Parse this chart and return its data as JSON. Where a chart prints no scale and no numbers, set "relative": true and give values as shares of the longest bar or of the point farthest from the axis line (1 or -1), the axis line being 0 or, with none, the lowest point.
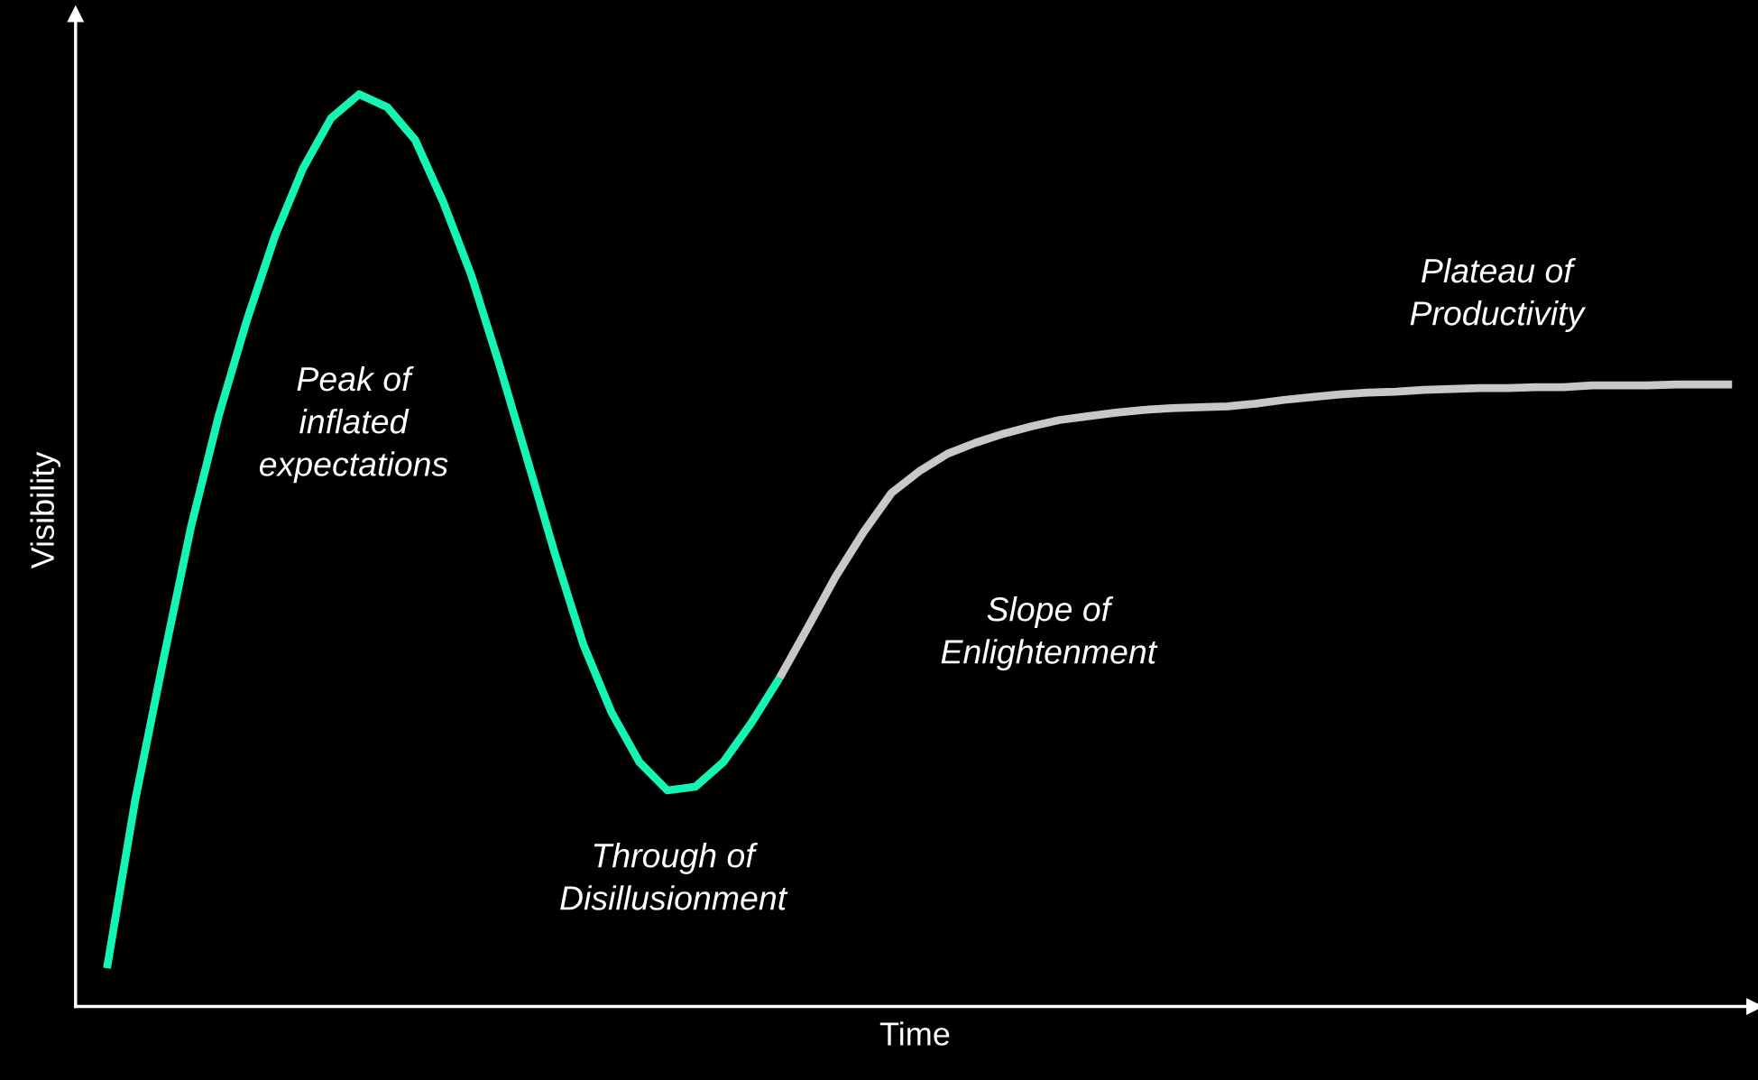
{
  "chart_data": {
    "type": "line",
    "relative": true,
    "xlabel": "Time",
    "ylabel": "Visibility",
    "categories": [
      null,
      null,
      null,
      null,
      null,
      null,
      null,
      null,
      null,
      null,
      null,
      null,
      null,
      null,
      null,
      null,
      null,
      null,
      null,
      null,
      null,
      null,
      null,
      null,
      null,
      null,
      null,
      null,
      null,
      null,
      null,
      null,
      null,
      null,
      null,
      null,
      null,
      null,
      null,
      null,
      null,
      null,
      null,
      null,
      null,
      null,
      null,
      null,
      null,
      null,
      null,
      null,
      null,
      null,
      null,
      null,
      null,
      null,
      null
    ],
    "series": [
      {
        "color": "#14f5b4",
        "values": [
          0.042,
          0.225,
          0.378,
          0.526,
          0.649,
          0.753,
          0.845,
          0.919,
          0.974,
          1.0,
          0.986,
          0.95,
          0.882,
          0.802,
          0.704,
          0.6,
          0.495,
          0.397,
          0.323,
          0.268,
          0.237,
          0.241,
          0.268,
          0.311,
          0.36,
          null,
          null,
          null,
          null,
          null,
          null,
          null,
          null,
          null,
          null,
          null,
          null,
          null,
          null,
          null,
          null,
          null,
          null,
          null,
          null,
          null,
          null,
          null,
          null,
          null,
          null,
          null,
          null,
          null,
          null,
          null,
          null,
          null,
          null
        ]
      },
      {
        "color": "#c8c8c8",
        "values": [
          null,
          null,
          null,
          null,
          null,
          null,
          null,
          null,
          null,
          null,
          null,
          null,
          null,
          null,
          null,
          null,
          null,
          null,
          null,
          null,
          null,
          null,
          null,
          null,
          0.36,
          0.415,
          0.471,
          0.52,
          0.563,
          0.587,
          0.606,
          0.618,
          0.628,
          0.636,
          0.643,
          0.647,
          0.651,
          0.654,
          0.656,
          0.657,
          0.658,
          0.661,
          0.665,
          0.668,
          0.671,
          0.673,
          0.674,
          0.676,
          0.677,
          0.678,
          0.678,
          0.679,
          0.679,
          0.681,
          0.681,
          0.681,
          0.682,
          0.682,
          0.682
        ]
      }
    ],
    "annotations": [
      "Peak of\ninflated\nexpectations",
      "Through of\nDisillusionment",
      "Slope of\nEnlightenment",
      "Plateau of\nProductivity"
    ],
    "line_style": "solid",
    "marker": "none"
  }
}
